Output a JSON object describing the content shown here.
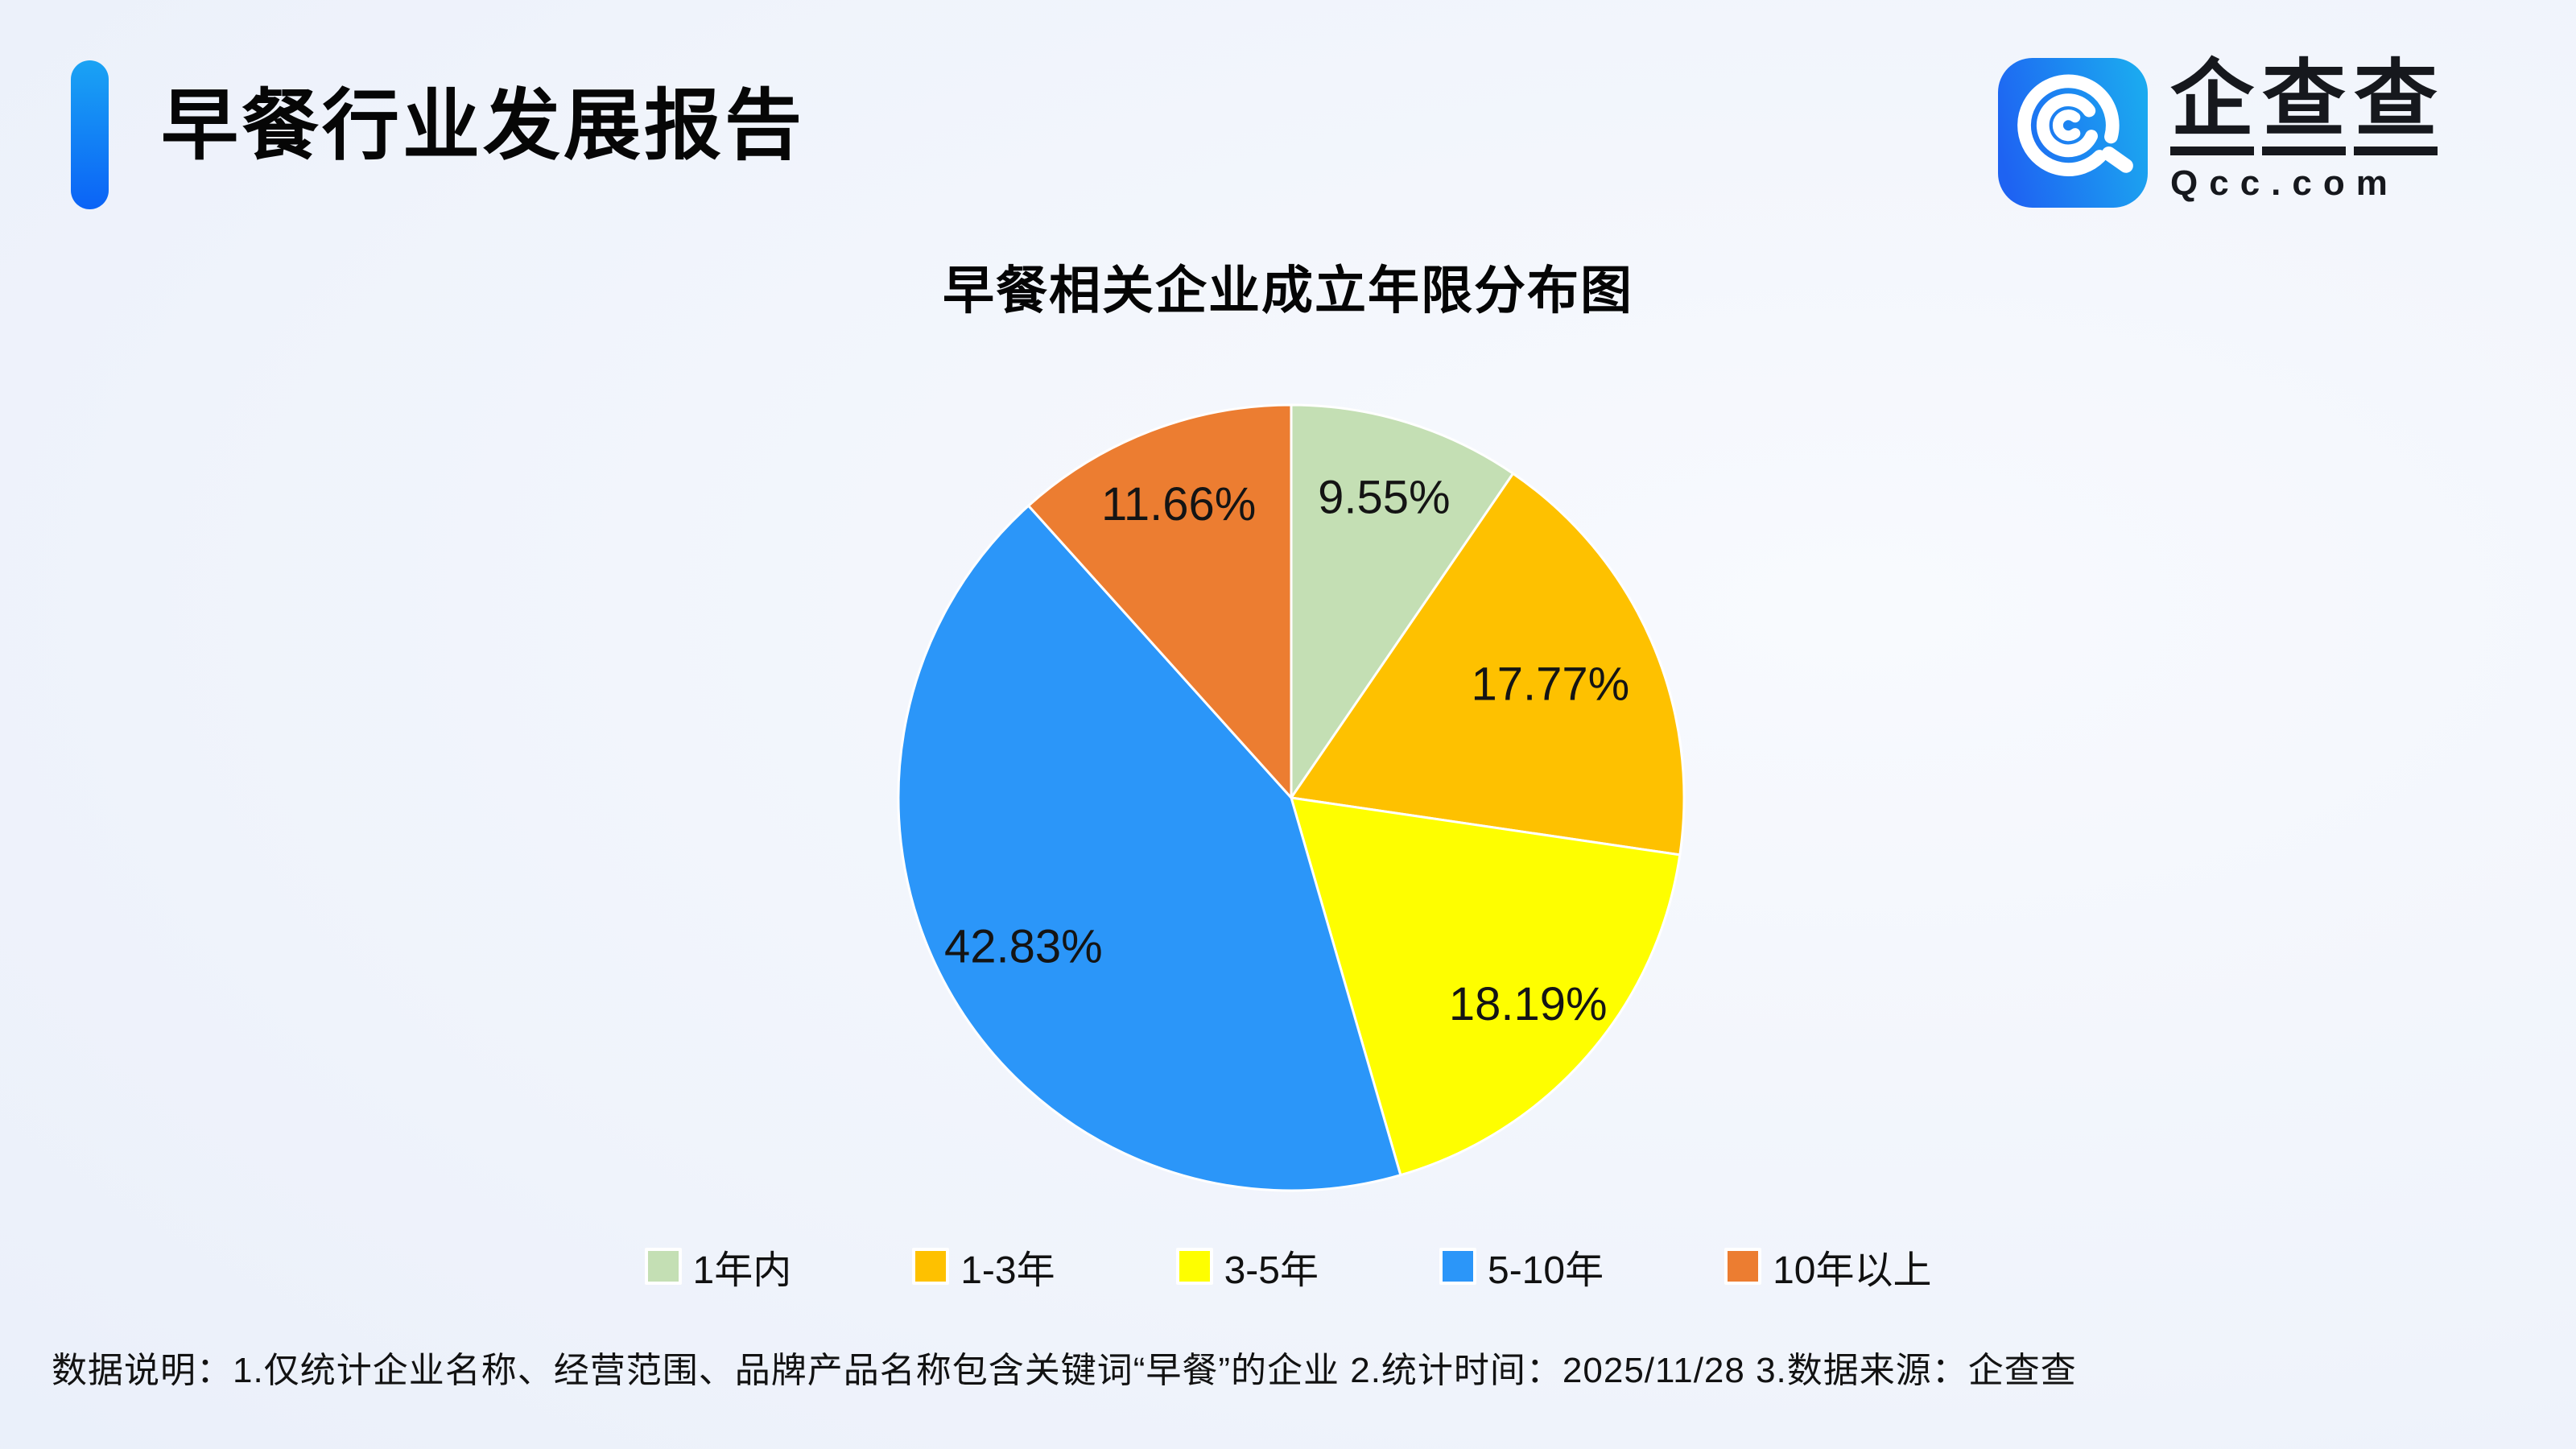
{
  "header": {
    "title": "早餐行业发展报告"
  },
  "logo": {
    "icon": "qcc-magnifier-icon",
    "brand_chars": [
      "企",
      "查",
      "查"
    ],
    "brand_text": "企查查",
    "domain": "Qcc.com",
    "icon_gradient": [
      "#1E63F2",
      "#1BAAF0"
    ]
  },
  "chart_data": {
    "type": "pie",
    "title": "早餐相关企业成立年限分布图",
    "categories": [
      "1年内",
      "1-3年",
      "3-5年",
      "5-10年",
      "10年以上"
    ],
    "values": [
      9.55,
      17.77,
      18.19,
      42.83,
      11.66
    ],
    "labels": [
      "9.55%",
      "17.77%",
      "18.19%",
      "42.83%",
      "11.66%"
    ],
    "colors": [
      "#C4DFB4",
      "#FEC100",
      "#FEFE00",
      "#2B96F9",
      "#EC7D31"
    ],
    "start_angle_deg": 0,
    "direction": "clockwise",
    "legend_position": "bottom",
    "slice_border_color": "#FFFFFF",
    "label_color": "#141414",
    "label_radius_factors": [
      0.8,
      0.72,
      0.8,
      0.78,
      0.8
    ]
  },
  "footer": {
    "note": "数据说明：1.仅统计企业名称、经营范围、品牌产品名称包含关键词“早餐”的企业  2.统计时间：2025/11/28   3.数据来源：企查查"
  },
  "colors": {
    "accent_blue_top": "#1AA3F4",
    "accent_blue_bottom": "#0B63F6",
    "background_light": "#F8FAFE",
    "background_edge": "#E5ECF9",
    "text_dark": "#121212"
  }
}
